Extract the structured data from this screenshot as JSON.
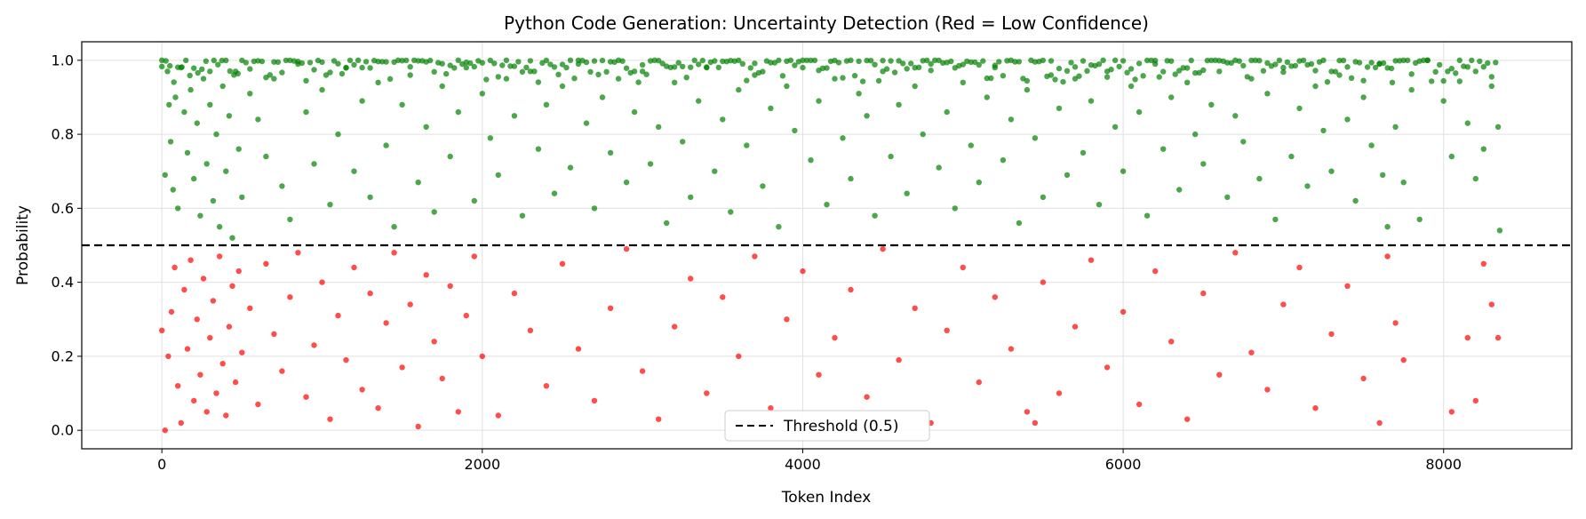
{
  "chart_data": {
    "type": "scatter",
    "title": "Python Code Generation: Uncertainty Detection (Red = Low Confidence)",
    "xlabel": "Token Index",
    "ylabel": "Probability",
    "xlim": [
      -500,
      8800
    ],
    "ylim": [
      -0.05,
      1.05
    ],
    "xticks": [
      0,
      2000,
      4000,
      6000,
      8000
    ],
    "xtick_labels": [
      "0",
      "2000",
      "4000",
      "6000",
      "8000"
    ],
    "yticks": [
      0.0,
      0.2,
      0.4,
      0.6,
      0.8,
      1.0
    ],
    "ytick_labels": [
      "0.0",
      "0.2",
      "0.4",
      "0.6",
      "0.8",
      "1.0"
    ],
    "grid": true,
    "n_tokens": 8350,
    "threshold": {
      "value": 0.5,
      "label": "Threshold (0.5)",
      "style": "dashed",
      "color": "#000000"
    },
    "legend": {
      "placement": "lower center",
      "entries": [
        "Threshold (0.5)"
      ]
    },
    "series": [
      {
        "role": "high-confidence",
        "color": "#008000",
        "opacity": 0.7,
        "condition": "probability >= 0.5",
        "points": [
          [
            0,
            1.0
          ],
          [
            20,
            0.69
          ],
          [
            35,
            0.97
          ],
          [
            45,
            0.88
          ],
          [
            55,
            0.78
          ],
          [
            70,
            0.65
          ],
          [
            85,
            0.9
          ],
          [
            100,
            0.6
          ],
          [
            120,
            0.98
          ],
          [
            140,
            0.86
          ],
          [
            160,
            0.75
          ],
          [
            180,
            0.92
          ],
          [
            200,
            0.68
          ],
          [
            220,
            0.83
          ],
          [
            240,
            0.58
          ],
          [
            260,
            0.95
          ],
          [
            280,
            0.72
          ],
          [
            300,
            0.88
          ],
          [
            320,
            0.62
          ],
          [
            340,
            0.8
          ],
          [
            360,
            0.55
          ],
          [
            380,
            0.93
          ],
          [
            400,
            0.7
          ],
          [
            420,
            0.85
          ],
          [
            440,
            0.52
          ],
          [
            460,
            0.97
          ],
          [
            480,
            0.76
          ],
          [
            500,
            0.63
          ],
          [
            550,
            0.91
          ],
          [
            600,
            0.84
          ],
          [
            650,
            0.74
          ],
          [
            700,
            0.95
          ],
          [
            750,
            0.66
          ],
          [
            800,
            0.57
          ],
          [
            850,
            0.99
          ],
          [
            900,
            0.86
          ],
          [
            950,
            0.72
          ],
          [
            1000,
            0.92
          ],
          [
            1050,
            0.61
          ],
          [
            1100,
            0.8
          ],
          [
            1150,
            0.98
          ],
          [
            1200,
            0.7
          ],
          [
            1250,
            0.89
          ],
          [
            1300,
            0.63
          ],
          [
            1350,
            0.94
          ],
          [
            1400,
            0.77
          ],
          [
            1450,
            0.55
          ],
          [
            1500,
            0.88
          ],
          [
            1550,
            0.96
          ],
          [
            1600,
            0.67
          ],
          [
            1650,
            0.82
          ],
          [
            1700,
            0.59
          ],
          [
            1750,
            0.93
          ],
          [
            1800,
            0.74
          ],
          [
            1850,
            0.86
          ],
          [
            1900,
            0.98
          ],
          [
            1950,
            0.62
          ],
          [
            2000,
            0.91
          ],
          [
            2050,
            0.79
          ],
          [
            2100,
            0.69
          ],
          [
            2150,
            0.95
          ],
          [
            2200,
            0.85
          ],
          [
            2250,
            0.58
          ],
          [
            2300,
            0.97
          ],
          [
            2350,
            0.76
          ],
          [
            2400,
            0.88
          ],
          [
            2450,
            0.64
          ],
          [
            2500,
            0.93
          ],
          [
            2550,
            0.71
          ],
          [
            2600,
            0.99
          ],
          [
            2650,
            0.83
          ],
          [
            2700,
            0.6
          ],
          [
            2750,
            0.9
          ],
          [
            2800,
            0.75
          ],
          [
            2850,
            0.95
          ],
          [
            2900,
            0.67
          ],
          [
            2950,
            0.86
          ],
          [
            3000,
            0.97
          ],
          [
            3050,
            0.72
          ],
          [
            3100,
            0.82
          ],
          [
            3150,
            0.56
          ],
          [
            3200,
            0.94
          ],
          [
            3250,
            0.78
          ],
          [
            3300,
            0.63
          ],
          [
            3350,
            0.89
          ],
          [
            3400,
            0.98
          ],
          [
            3450,
            0.7
          ],
          [
            3500,
            0.84
          ],
          [
            3550,
            0.59
          ],
          [
            3600,
            0.92
          ],
          [
            3650,
            0.77
          ],
          [
            3700,
            0.96
          ],
          [
            3750,
            0.66
          ],
          [
            3800,
            0.87
          ],
          [
            3850,
            0.55
          ],
          [
            3900,
            0.93
          ],
          [
            3950,
            0.81
          ],
          [
            4000,
            0.98
          ],
          [
            4050,
            0.73
          ],
          [
            4100,
            0.89
          ],
          [
            4150,
            0.61
          ],
          [
            4200,
            0.95
          ],
          [
            4250,
            0.79
          ],
          [
            4300,
            0.68
          ],
          [
            4350,
            0.91
          ],
          [
            4400,
            0.85
          ],
          [
            4450,
            0.58
          ],
          [
            4500,
            0.97
          ],
          [
            4550,
            0.74
          ],
          [
            4600,
            0.88
          ],
          [
            4650,
            0.64
          ],
          [
            4700,
            0.93
          ],
          [
            4750,
            0.8
          ],
          [
            4800,
            0.99
          ],
          [
            4850,
            0.71
          ],
          [
            4900,
            0.86
          ],
          [
            4950,
            0.6
          ],
          [
            5000,
            0.94
          ],
          [
            5050,
            0.77
          ],
          [
            5100,
            0.67
          ],
          [
            5150,
            0.9
          ],
          [
            5200,
            0.98
          ],
          [
            5250,
            0.73
          ],
          [
            5300,
            0.84
          ],
          [
            5350,
            0.56
          ],
          [
            5400,
            0.92
          ],
          [
            5450,
            0.79
          ],
          [
            5500,
            0.63
          ],
          [
            5550,
            0.96
          ],
          [
            5600,
            0.87
          ],
          [
            5650,
            0.69
          ],
          [
            5700,
            0.95
          ],
          [
            5750,
            0.75
          ],
          [
            5800,
            0.89
          ],
          [
            5850,
            0.61
          ],
          [
            5900,
            0.97
          ],
          [
            5950,
            0.82
          ],
          [
            6000,
            0.7
          ],
          [
            6050,
            0.93
          ],
          [
            6100,
            0.86
          ],
          [
            6150,
            0.58
          ],
          [
            6200,
            0.99
          ],
          [
            6250,
            0.76
          ],
          [
            6300,
            0.9
          ],
          [
            6350,
            0.65
          ],
          [
            6400,
            0.94
          ],
          [
            6450,
            0.8
          ],
          [
            6500,
            0.72
          ],
          [
            6550,
            0.88
          ],
          [
            6600,
            0.97
          ],
          [
            6650,
            0.63
          ],
          [
            6700,
            0.85
          ],
          [
            6750,
            0.78
          ],
          [
            6800,
            0.95
          ],
          [
            6850,
            0.68
          ],
          [
            6900,
            0.91
          ],
          [
            6950,
            0.57
          ],
          [
            7000,
            0.98
          ],
          [
            7050,
            0.74
          ],
          [
            7100,
            0.87
          ],
          [
            7150,
            0.66
          ],
          [
            7200,
            0.93
          ],
          [
            7250,
            0.81
          ],
          [
            7300,
            0.7
          ],
          [
            7350,
            0.96
          ],
          [
            7400,
            0.84
          ],
          [
            7450,
            0.62
          ],
          [
            7500,
            0.9
          ],
          [
            7550,
            0.77
          ],
          [
            7600,
            0.99
          ],
          [
            7620,
            0.69
          ],
          [
            7650,
            0.55
          ],
          [
            7680,
            0.94
          ],
          [
            7700,
            0.82
          ],
          [
            7750,
            0.67
          ],
          [
            7800,
            0.92
          ],
          [
            7850,
            0.57
          ],
          [
            7900,
            1.0
          ],
          [
            8000,
            0.89
          ],
          [
            8050,
            0.74
          ],
          [
            8100,
            1.0
          ],
          [
            8150,
            0.83
          ],
          [
            8200,
            0.68
          ],
          [
            8250,
            0.76
          ],
          [
            8300,
            0.93
          ],
          [
            8340,
            0.82
          ],
          [
            8350,
            0.54
          ]
        ]
      },
      {
        "role": "low-confidence",
        "color": "#ff0000",
        "opacity": 0.7,
        "condition": "probability < 0.5",
        "points": [
          [
            0,
            0.27
          ],
          [
            20,
            0.0
          ],
          [
            40,
            0.2
          ],
          [
            60,
            0.32
          ],
          [
            80,
            0.44
          ],
          [
            100,
            0.12
          ],
          [
            120,
            0.02
          ],
          [
            140,
            0.38
          ],
          [
            160,
            0.22
          ],
          [
            180,
            0.46
          ],
          [
            200,
            0.08
          ],
          [
            220,
            0.3
          ],
          [
            240,
            0.15
          ],
          [
            260,
            0.41
          ],
          [
            280,
            0.05
          ],
          [
            300,
            0.25
          ],
          [
            320,
            0.35
          ],
          [
            340,
            0.1
          ],
          [
            360,
            0.47
          ],
          [
            380,
            0.18
          ],
          [
            400,
            0.04
          ],
          [
            420,
            0.28
          ],
          [
            440,
            0.39
          ],
          [
            460,
            0.13
          ],
          [
            480,
            0.43
          ],
          [
            500,
            0.21
          ],
          [
            550,
            0.33
          ],
          [
            600,
            0.07
          ],
          [
            650,
            0.45
          ],
          [
            700,
            0.26
          ],
          [
            750,
            0.16
          ],
          [
            800,
            0.36
          ],
          [
            850,
            0.48
          ],
          [
            900,
            0.09
          ],
          [
            950,
            0.23
          ],
          [
            1000,
            0.4
          ],
          [
            1050,
            0.03
          ],
          [
            1100,
            0.31
          ],
          [
            1150,
            0.19
          ],
          [
            1200,
            0.44
          ],
          [
            1250,
            0.11
          ],
          [
            1300,
            0.37
          ],
          [
            1350,
            0.06
          ],
          [
            1400,
            0.29
          ],
          [
            1450,
            0.48
          ],
          [
            1500,
            0.17
          ],
          [
            1550,
            0.34
          ],
          [
            1600,
            0.01
          ],
          [
            1650,
            0.42
          ],
          [
            1700,
            0.24
          ],
          [
            1750,
            0.14
          ],
          [
            1800,
            0.39
          ],
          [
            1850,
            0.05
          ],
          [
            1900,
            0.31
          ],
          [
            1950,
            0.47
          ],
          [
            2000,
            0.2
          ],
          [
            2100,
            0.04
          ],
          [
            2200,
            0.37
          ],
          [
            2300,
            0.27
          ],
          [
            2400,
            0.12
          ],
          [
            2500,
            0.45
          ],
          [
            2600,
            0.22
          ],
          [
            2700,
            0.08
          ],
          [
            2800,
            0.33
          ],
          [
            2900,
            0.49
          ],
          [
            3000,
            0.16
          ],
          [
            3100,
            0.03
          ],
          [
            3200,
            0.28
          ],
          [
            3300,
            0.41
          ],
          [
            3400,
            0.1
          ],
          [
            3500,
            0.36
          ],
          [
            3600,
            0.2
          ],
          [
            3700,
            0.47
          ],
          [
            3800,
            0.06
          ],
          [
            3900,
            0.3
          ],
          [
            4000,
            0.43
          ],
          [
            4100,
            0.15
          ],
          [
            4200,
            0.25
          ],
          [
            4300,
            0.38
          ],
          [
            4400,
            0.09
          ],
          [
            4500,
            0.49
          ],
          [
            4600,
            0.19
          ],
          [
            4700,
            0.33
          ],
          [
            4800,
            0.02
          ],
          [
            4900,
            0.27
          ],
          [
            5000,
            0.44
          ],
          [
            5100,
            0.13
          ],
          [
            5200,
            0.36
          ],
          [
            5300,
            0.22
          ],
          [
            5400,
            0.05
          ],
          [
            5450,
            0.02
          ],
          [
            5500,
            0.4
          ],
          [
            5600,
            0.1
          ],
          [
            5700,
            0.28
          ],
          [
            5800,
            0.46
          ],
          [
            5900,
            0.17
          ],
          [
            6000,
            0.32
          ],
          [
            6100,
            0.07
          ],
          [
            6200,
            0.43
          ],
          [
            6300,
            0.24
          ],
          [
            6400,
            0.03
          ],
          [
            6500,
            0.37
          ],
          [
            6600,
            0.15
          ],
          [
            6700,
            0.48
          ],
          [
            6800,
            0.21
          ],
          [
            6900,
            0.11
          ],
          [
            7000,
            0.34
          ],
          [
            7100,
            0.44
          ],
          [
            7200,
            0.06
          ],
          [
            7300,
            0.26
          ],
          [
            7400,
            0.39
          ],
          [
            7500,
            0.14
          ],
          [
            7600,
            0.02
          ],
          [
            7650,
            0.47
          ],
          [
            7700,
            0.29
          ],
          [
            7750,
            0.19
          ],
          [
            8050,
            0.05
          ],
          [
            8150,
            0.25
          ],
          [
            8200,
            0.08
          ],
          [
            8250,
            0.45
          ],
          [
            8300,
            0.34
          ],
          [
            8340,
            0.25
          ]
        ]
      }
    ]
  }
}
